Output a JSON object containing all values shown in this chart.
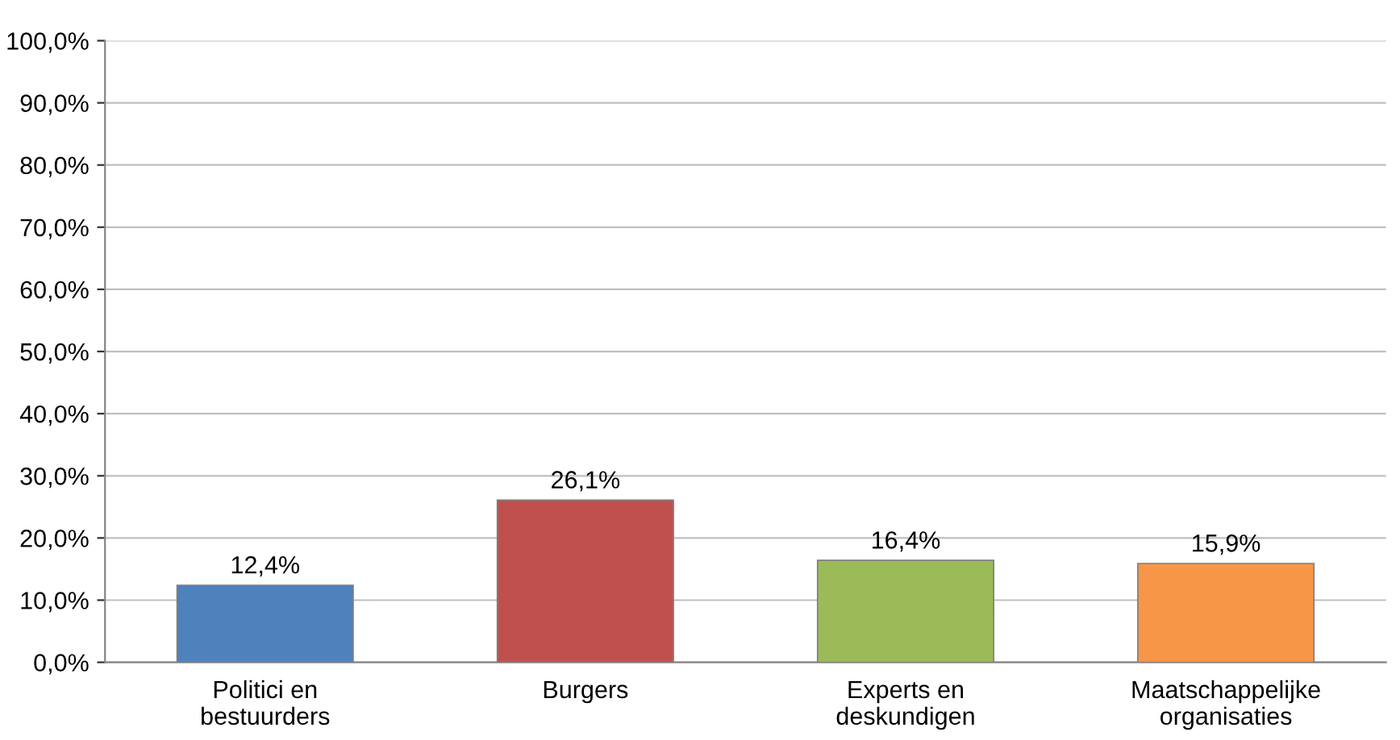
{
  "chart_data": {
    "type": "bar",
    "categories": [
      "Politici en\nbestuurders",
      "Burgers",
      "Experts en\ndeskundigen",
      "Maatschappelijke\norganisaties"
    ],
    "values": [
      12.4,
      26.1,
      16.4,
      15.9
    ],
    "colors": [
      "#4f81bd",
      "#c0504d",
      "#9bbb59",
      "#f79646"
    ],
    "value_labels": [
      "12,4%",
      "26,1%",
      "16,4%",
      "15,9%"
    ],
    "ylim": [
      0,
      100
    ],
    "yticks": [
      {
        "value": 0,
        "label": "0,0%"
      },
      {
        "value": 10,
        "label": "10,0%"
      },
      {
        "value": 20,
        "label": "20,0%"
      },
      {
        "value": 30,
        "label": "30,0%"
      },
      {
        "value": 40,
        "label": "40,0%"
      },
      {
        "value": 50,
        "label": "50,0%"
      },
      {
        "value": 60,
        "label": "60,0%"
      },
      {
        "value": 70,
        "label": "70,0%"
      },
      {
        "value": 80,
        "label": "80,0%"
      },
      {
        "value": 90,
        "label": "90,0%"
      },
      {
        "value": 100,
        "label": "100,0%"
      }
    ],
    "grid": "y",
    "legend": false
  }
}
